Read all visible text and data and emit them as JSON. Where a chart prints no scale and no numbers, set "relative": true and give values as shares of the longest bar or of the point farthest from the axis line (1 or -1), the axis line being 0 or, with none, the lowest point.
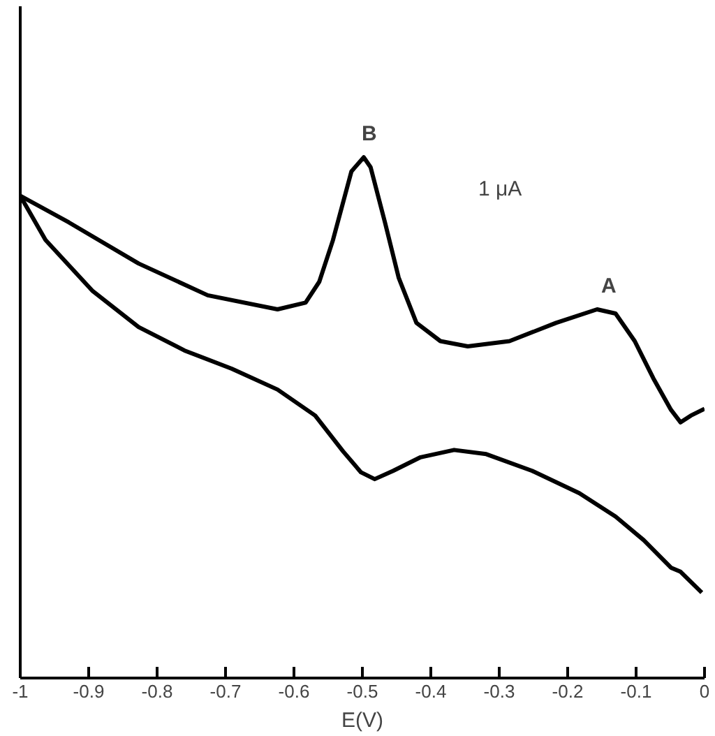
{
  "chart_data": {
    "type": "line",
    "relative": true,
    "xlabel": "E(V)",
    "xlim": [
      -1,
      0
    ],
    "xticks": [
      -1,
      -0.9,
      -0.8,
      -0.7,
      -0.6,
      -0.5,
      -0.4,
      -0.3,
      -0.2,
      -0.1,
      0
    ],
    "tick_labels": "x",
    "grid": false,
    "line_style": "solid",
    "annotations": [
      {
        "text": "B",
        "x": -0.49,
        "y": 1.0
      },
      {
        "text": "A",
        "x": -0.14,
        "y": 0.708
      },
      "1 μA"
    ],
    "series": [
      {
        "color": "#000000",
        "x": [
          -1.0,
          -0.929,
          -0.827,
          -0.726,
          -0.624,
          -0.583,
          -0.563,
          -0.543,
          -0.516,
          -0.498,
          -0.488,
          -0.467,
          -0.447,
          -0.421,
          -0.386,
          -0.346,
          -0.285,
          -0.217,
          -0.157,
          -0.13,
          -0.102,
          -0.075,
          -0.049,
          -0.035,
          -0.02,
          0.0
        ],
        "values": [
          0.926,
          0.875,
          0.796,
          0.735,
          0.708,
          0.721,
          0.761,
          0.841,
          0.973,
          1.0,
          0.981,
          0.875,
          0.769,
          0.682,
          0.647,
          0.637,
          0.647,
          0.682,
          0.708,
          0.7,
          0.647,
          0.576,
          0.515,
          0.491,
          0.504,
          0.517
        ]
      },
      {
        "color": "#000000",
        "x": [
          -1.0,
          -0.963,
          -0.894,
          -0.827,
          -0.76,
          -0.691,
          -0.624,
          -0.569,
          -0.528,
          -0.502,
          -0.482,
          -0.455,
          -0.415,
          -0.366,
          -0.319,
          -0.252,
          -0.183,
          -0.13,
          -0.089,
          -0.049,
          -0.035,
          -0.004
        ],
        "values": [
          0.926,
          0.841,
          0.743,
          0.674,
          0.629,
          0.594,
          0.554,
          0.504,
          0.435,
          0.395,
          0.382,
          0.398,
          0.424,
          0.438,
          0.43,
          0.398,
          0.355,
          0.31,
          0.265,
          0.212,
          0.204,
          0.164
        ]
      }
    ]
  }
}
